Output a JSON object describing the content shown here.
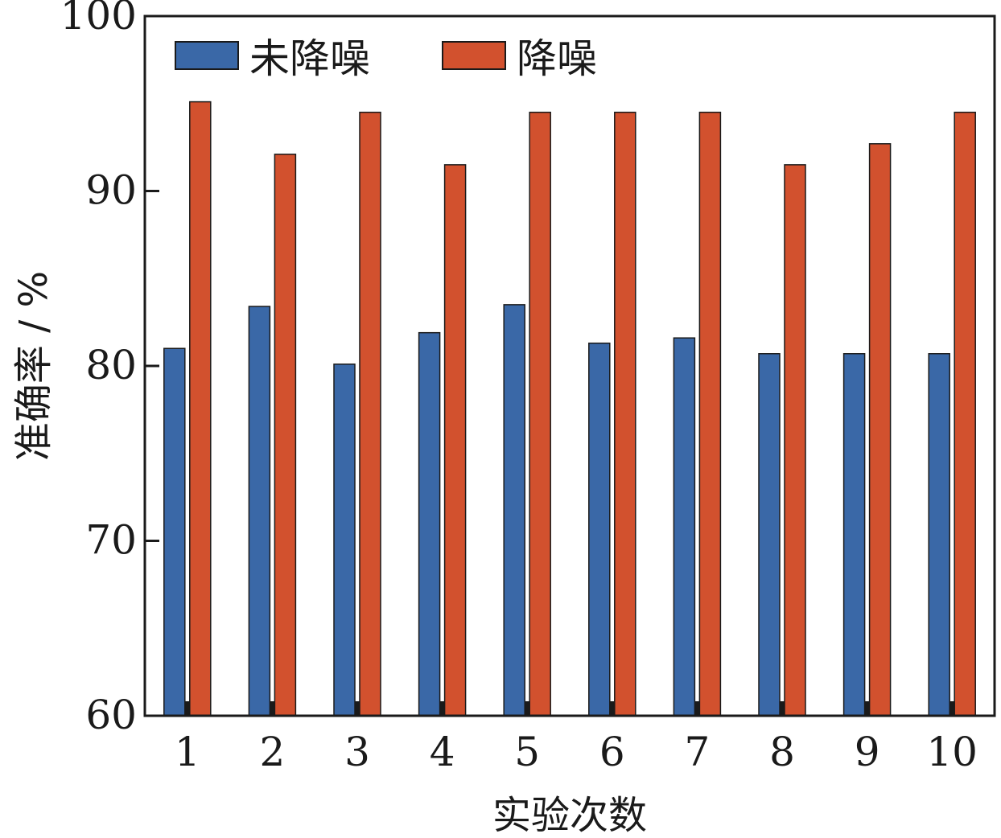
{
  "chart_data": {
    "type": "bar",
    "categories": [
      "1",
      "2",
      "3",
      "4",
      "5",
      "6",
      "7",
      "8",
      "9",
      "10"
    ],
    "series": [
      {
        "name": "未降噪",
        "color": "#3a68a7",
        "values": [
          81.0,
          83.4,
          80.1,
          81.9,
          83.5,
          81.3,
          81.6,
          80.7,
          80.7,
          80.7
        ]
      },
      {
        "name": "降噪",
        "color": "#d2512e",
        "values": [
          95.1,
          92.1,
          94.5,
          91.5,
          94.5,
          94.5,
          94.5,
          91.5,
          92.7,
          94.5
        ]
      }
    ],
    "xlabel": "实验次数",
    "ylabel": "准确率 / %",
    "ylim": [
      60,
      100
    ],
    "yticks": [
      "60",
      "70",
      "80",
      "90",
      "100"
    ],
    "grid": false,
    "legend_position": "top-left"
  }
}
